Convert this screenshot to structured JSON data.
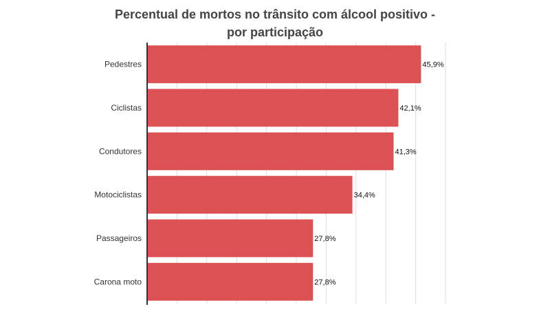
{
  "chart_data": {
    "type": "bar",
    "orientation": "horizontal",
    "title_line1": "Percentual de mortos no trânsito com álcool positivo -",
    "title_line2": "por participação",
    "categories": [
      "Pedestres",
      "Ciclistas",
      "Condutores",
      "Motociclistas",
      "Passageiros",
      "Carona moto"
    ],
    "values": [
      45.9,
      42.1,
      41.3,
      34.4,
      27.8,
      27.8
    ],
    "value_labels": [
      "45,9%",
      "42,1%",
      "41,3%",
      "34,4%",
      "27,8%",
      "27,8%"
    ],
    "xlim": [
      0,
      50
    ],
    "grid": true,
    "bar_color": "#dc5153",
    "grid_color": "#dddddd",
    "axis_color": "#333333"
  }
}
